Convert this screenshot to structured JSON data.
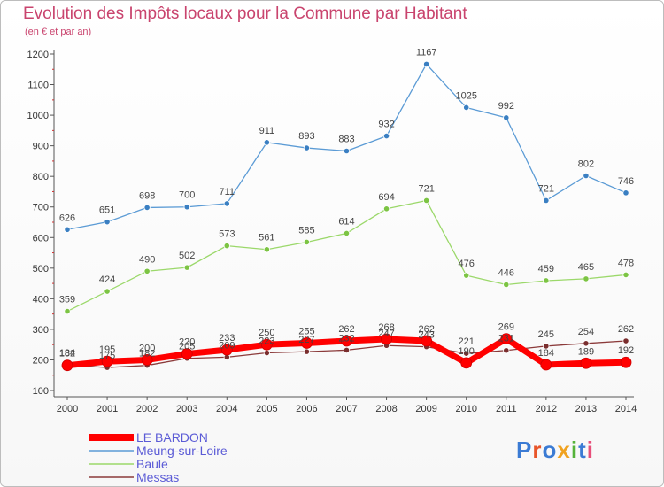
{
  "chart_data": {
    "type": "line",
    "title": "Evolution des Impôts locaux pour la Commune par Habitant",
    "subtitle": "(en € et par an)",
    "x": [
      "2000",
      "2001",
      "2002",
      "2003",
      "2004",
      "2005",
      "2006",
      "2007",
      "2008",
      "2009",
      "2010",
      "2011",
      "2012",
      "2013",
      "2014"
    ],
    "ylim": [
      100,
      1200
    ],
    "yticks": [
      100,
      200,
      300,
      400,
      500,
      600,
      700,
      800,
      900,
      1000,
      1100,
      1200
    ],
    "grid": false,
    "legend_placement": "bottom-left",
    "series": [
      {
        "name": "Meung-sur-Loire",
        "color": "#5b9bd5",
        "marker": "#3a7fc2",
        "width": 1.3,
        "values": [
          626,
          651,
          698,
          700,
          711,
          911,
          893,
          883,
          932,
          1167,
          1025,
          992,
          721,
          802,
          746
        ]
      },
      {
        "name": "Baule",
        "color": "#9bd86a",
        "marker": "#7cc443",
        "width": 1.3,
        "values": [
          359,
          424,
          490,
          502,
          573,
          561,
          585,
          614,
          694,
          721,
          476,
          446,
          459,
          465,
          478
        ]
      },
      {
        "name": "Messas",
        "color": "#8b3a3a",
        "marker": "#7a2e2e",
        "width": 1.3,
        "values": [
          184,
          175,
          182,
          205,
          209,
          223,
          227,
          232,
          247,
          243,
          221,
          231,
          245,
          254,
          262
        ]
      },
      {
        "name": "LE BARDON",
        "color": "#ff0000",
        "marker": "#ff0000",
        "width": 7,
        "values": [
          182,
          195,
          200,
          220,
          233,
          250,
          255,
          262,
          268,
          262,
          190,
          269,
          184,
          189,
          192
        ]
      }
    ],
    "legend_order": [
      "LE BARDON",
      "Meung-sur-Loire",
      "Baule",
      "Messas"
    ],
    "legend_text_color": "#5b5bd6"
  },
  "logo": {
    "text": "Proxiti"
  }
}
